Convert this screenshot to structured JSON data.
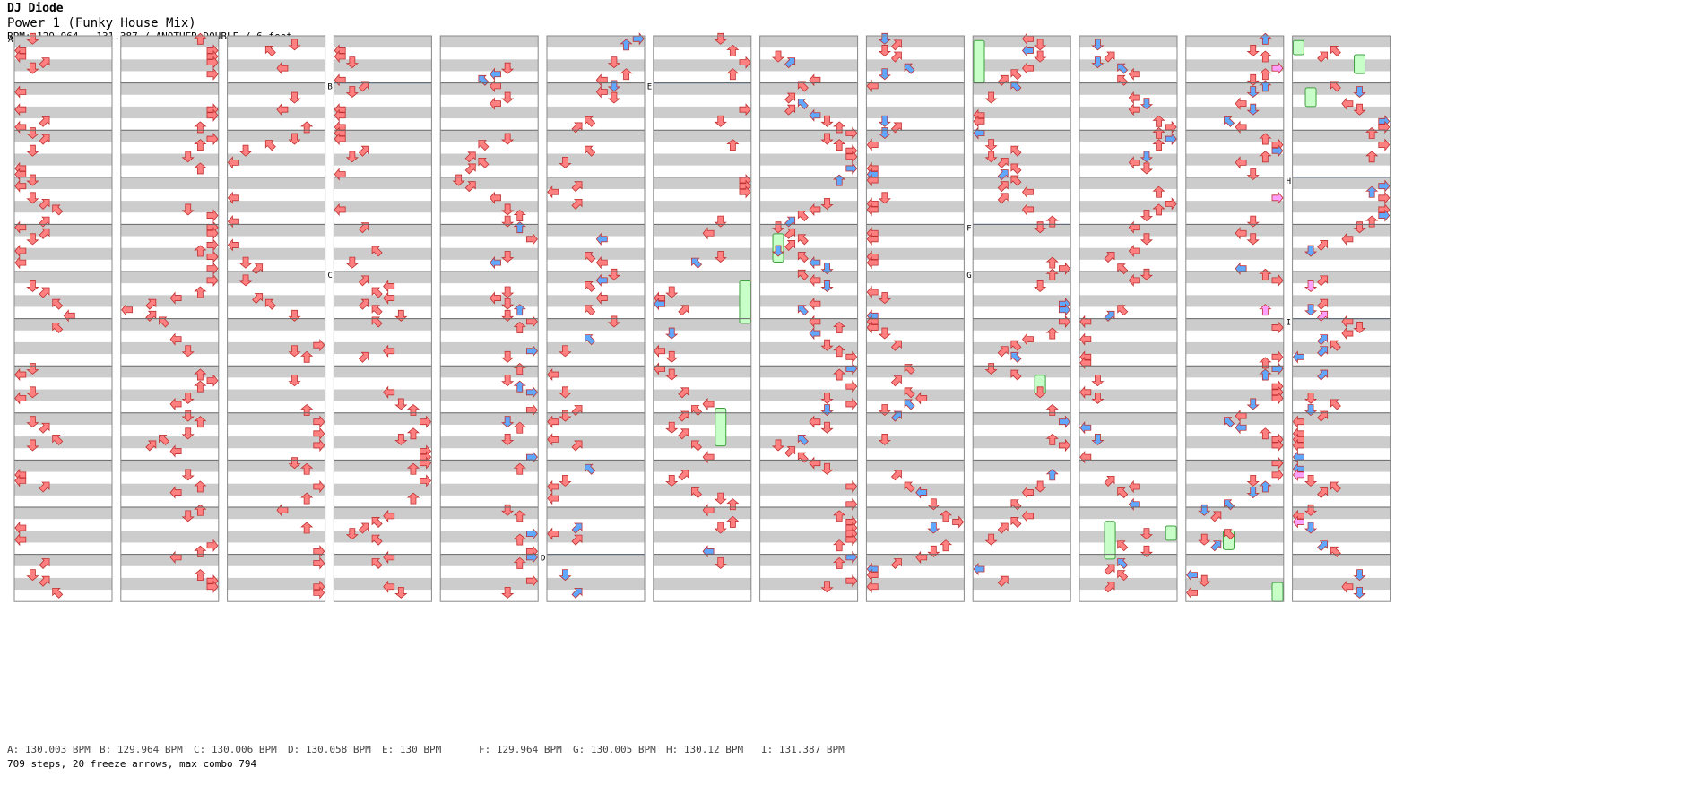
{
  "header": {
    "artist": "DJ Diode",
    "title": "Power 1 (Funky House Mix)",
    "meta": "BPM: 129.964 - 131.387 / ANOTHER DOUBLE / 6 feet"
  },
  "colors": {
    "stripe": "#cccccc",
    "column_border": "#888888",
    "arrow_red": "#ff8080",
    "arrow_blue": "#60a8ff",
    "arrow_pink": "#ffa0ff",
    "freeze_green": "#c8ffc8",
    "bpm_line": "#3070c0"
  },
  "bpm_changes": [
    {
      "label": "A",
      "text": "A: 130.003 BPM"
    },
    {
      "label": "B",
      "text": "B: 129.964 BPM"
    },
    {
      "label": "C",
      "text": "C: 130.006 BPM"
    },
    {
      "label": "D",
      "text": "D: 130.058 BPM"
    },
    {
      "label": "E",
      "text": "E: 130 BPM"
    },
    {
      "label": "F",
      "text": "F: 129.964 BPM"
    },
    {
      "label": "G",
      "text": "G: 130.005 BPM"
    },
    {
      "label": "H",
      "text": "H: 130.12 BPM"
    },
    {
      "label": "I",
      "text": "I: 131.387 BPM"
    }
  ],
  "stats": "709 steps, 20 freeze arrows, max combo 794",
  "chart_data": {
    "type": "step-chart",
    "columns": 13,
    "measures_per_column": 12,
    "panels": 8,
    "total_steps": 709,
    "freeze_arrows": 20,
    "max_combo": 794,
    "bpm_markers": [
      {
        "label": "A",
        "column": 1,
        "measure": 1
      },
      {
        "label": "B",
        "column": 4,
        "measure": 2
      },
      {
        "label": "C",
        "column": 4,
        "measure": 6
      },
      {
        "label": "D",
        "column": 6,
        "measure": 12
      },
      {
        "label": "E",
        "column": 7,
        "measure": 2
      },
      {
        "label": "F",
        "column": 10,
        "measure": 5
      },
      {
        "label": "G",
        "column": 10,
        "measure": 6
      },
      {
        "label": "H",
        "column": 13,
        "measure": 4
      },
      {
        "label": "I",
        "column": 13,
        "measure": 7
      }
    ]
  }
}
